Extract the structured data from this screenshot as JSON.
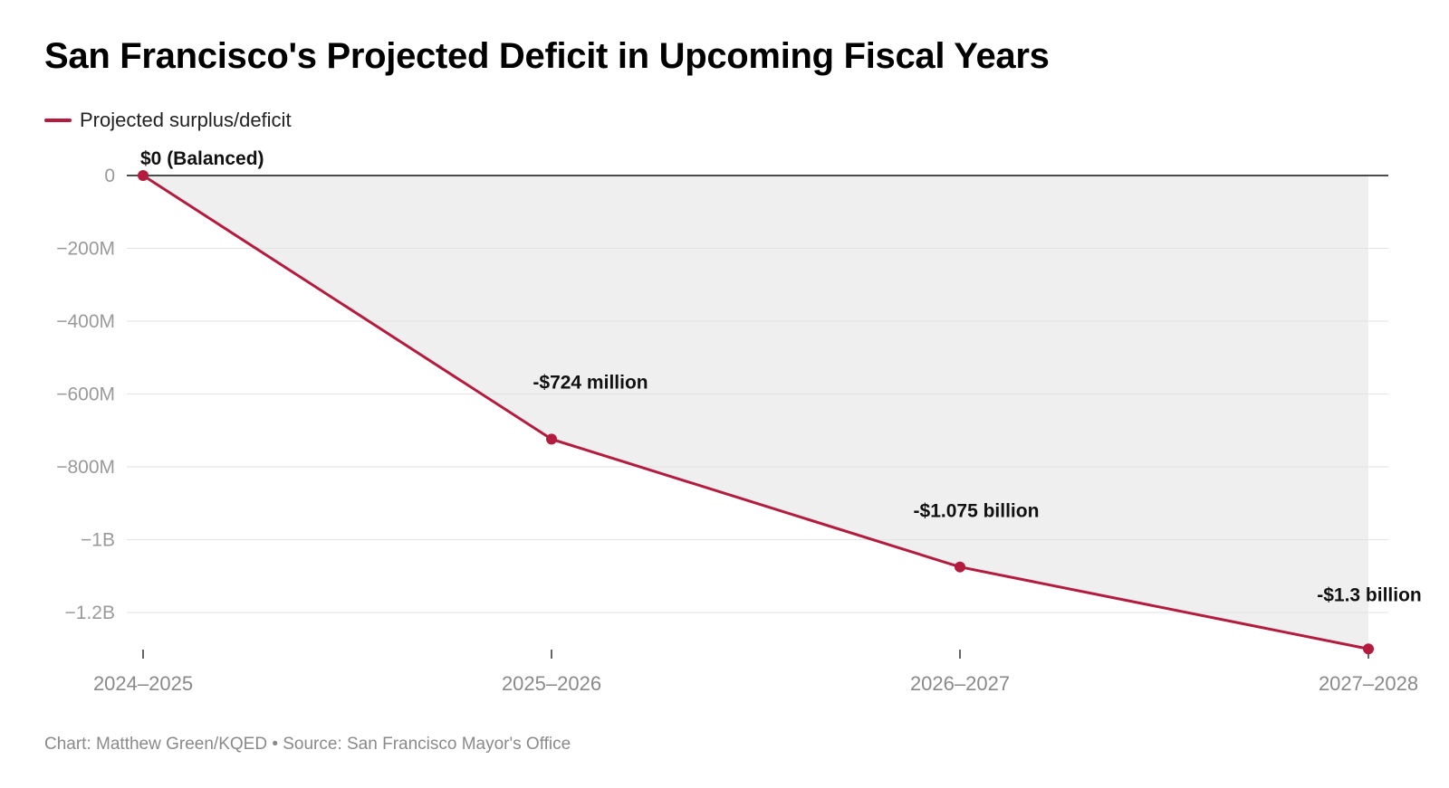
{
  "title": "San Francisco's Projected Deficit in Upcoming Fiscal Years",
  "legend": {
    "label": "Projected surplus/deficit"
  },
  "footer": "Chart: Matthew Green/KQED • Source: San Francisco Mayor's Office",
  "colors": {
    "line": "#b31b3f",
    "area": "#efefef",
    "grid": "#e2e2e2",
    "zero_line": "#111111"
  },
  "chart_data": {
    "type": "area",
    "title": "San Francisco's Projected Deficit in Upcoming Fiscal Years",
    "xlabel": "",
    "ylabel": "",
    "categories": [
      "2024–2025",
      "2025–2026",
      "2026–2027",
      "2027–2028"
    ],
    "series": [
      {
        "name": "Projected surplus/deficit",
        "values": [
          0,
          -724000000,
          -1075000000,
          -1300000000
        ]
      }
    ],
    "data_labels": [
      "$0 (Balanced)",
      "-$724 million",
      "-$1.075 billion",
      "-$1.3 billion"
    ],
    "y_ticks": [
      0,
      -200000000,
      -400000000,
      -600000000,
      -800000000,
      -1000000000,
      -1200000000
    ],
    "y_tick_labels": [
      "0",
      "−200M",
      "−400M",
      "−600M",
      "−800M",
      "−1B",
      "−1.2B"
    ],
    "ylim": [
      -1300000000,
      0
    ],
    "grid": true,
    "legend_position": "top-left"
  }
}
